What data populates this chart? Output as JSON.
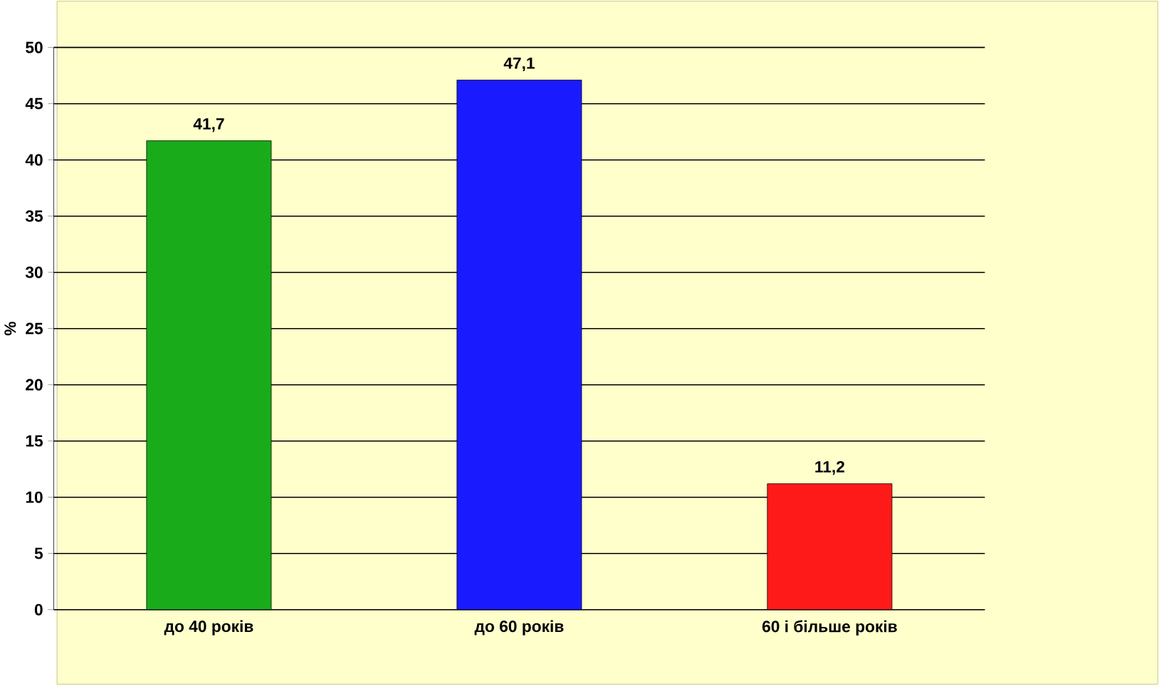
{
  "chart_data": {
    "type": "bar",
    "ylabel": "%",
    "categories": [
      "до 40 років",
      "до 60 років",
      "60 і більше років"
    ],
    "values": [
      41.7,
      47.1,
      11.2
    ],
    "colors": [
      "#1aab1a",
      "#1a1aff",
      "#ff1a1a"
    ],
    "value_labels": [
      "41,7",
      "47,1",
      "11,2"
    ],
    "ylim": [
      0,
      50
    ],
    "yticks": [
      0,
      5,
      10,
      15,
      20,
      25,
      30,
      35,
      40,
      45,
      50
    ],
    "grid": "y"
  }
}
